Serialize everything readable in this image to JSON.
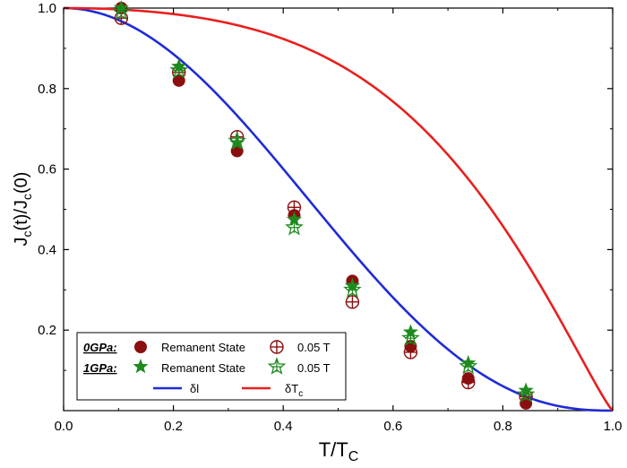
{
  "chart_data": {
    "type": "scatter",
    "xlabel": "T/T",
    "xlabel_sub": "C",
    "ylabel_parts": [
      "J",
      "c",
      "(t)/J",
      "c",
      "(0)"
    ],
    "xlim": [
      0,
      1.0
    ],
    "ylim": [
      0,
      1.0
    ],
    "x_ticks": [
      "0.0",
      "0.2",
      "0.4",
      "0.6",
      "0.8",
      "1.0"
    ],
    "y_ticks": [
      "0.2",
      "0.4",
      "0.6",
      "0.8",
      "1.0"
    ],
    "x_tick_values": [
      0.0,
      0.2,
      0.4,
      0.6,
      0.8,
      1.0
    ],
    "y_tick_values": [
      0.2,
      0.4,
      0.6,
      0.8,
      1.0
    ],
    "grid": false,
    "legend_position": "bottom-left",
    "legend": {
      "group_0gpa": "0GPa:",
      "group_1gpa": "1GPa:",
      "remanent_0": "Remanent State",
      "field_0": "0.05 T",
      "remanent_1": "Remanent State",
      "field_1": "0.05 T",
      "delta_l": "δl",
      "delta_tc": "δT",
      "delta_tc_sub": "c"
    },
    "series": [
      {
        "name": "0GPa Remanent State",
        "marker": "filled-circle",
        "color": "#8b0f0f",
        "x": [
          0.105,
          0.21,
          0.316,
          0.42,
          0.526,
          0.632,
          0.737,
          0.842
        ],
        "y": [
          1.0,
          0.82,
          0.645,
          0.485,
          0.322,
          0.16,
          0.08,
          0.018
        ]
      },
      {
        "name": "0GPa 0.05 T",
        "marker": "crossed-circle",
        "color": "#8b0f0f",
        "x": [
          0.105,
          0.21,
          0.316,
          0.42,
          0.526,
          0.632,
          0.737,
          0.842
        ],
        "y": [
          0.975,
          0.84,
          0.68,
          0.505,
          0.27,
          0.145,
          0.07,
          0.035
        ]
      },
      {
        "name": "1GPa Remanent State",
        "marker": "filled-star",
        "color": "#1e8a1e",
        "x": [
          0.105,
          0.21,
          0.316,
          0.42,
          0.526,
          0.632,
          0.737,
          0.842
        ],
        "y": [
          1.0,
          0.855,
          0.665,
          0.475,
          0.31,
          0.195,
          0.118,
          0.05
        ]
      },
      {
        "name": "1GPa 0.05 T",
        "marker": "hollow-star",
        "color": "#1e8a1e",
        "x": [
          0.105,
          0.21,
          0.316,
          0.42,
          0.526,
          0.632,
          0.737,
          0.842
        ],
        "y": [
          0.99,
          0.845,
          0.67,
          0.455,
          0.3,
          0.18,
          0.11,
          0.04
        ]
      }
    ],
    "curves": [
      {
        "name": "δl",
        "color": "#1f2bd6",
        "formula": "delta_l",
        "note": "(1-t^2)^(5/2)(1+t^2)^(-1/2)"
      },
      {
        "name": "δTc",
        "color": "#e8201e",
        "formula": "delta_tc",
        "note": "(1-t^2)^(7/6)(1+t^2)^(5/6)"
      }
    ]
  }
}
